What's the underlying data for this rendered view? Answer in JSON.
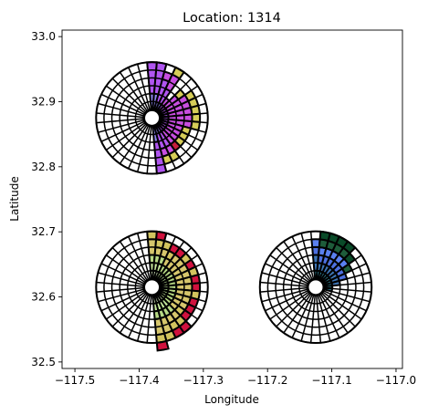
{
  "chart_data": {
    "type": "polar-bar-map",
    "title": "Location: 1314",
    "xlabel": "Longitude",
    "ylabel": "Latitude",
    "xlim": [
      -117.52,
      -116.99
    ],
    "ylim": [
      32.49,
      33.01
    ],
    "xticks": [
      -117.5,
      -117.4,
      -117.3,
      -117.2,
      -117.1,
      -117.0
    ],
    "xtick_labels": [
      "−117.5",
      "−117.4",
      "−117.3",
      "−117.2",
      "−117.1",
      "−117.0"
    ],
    "yticks": [
      32.5,
      32.6,
      32.7,
      32.8,
      32.9,
      33.0
    ],
    "ytick_labels": [
      "32.5",
      "32.6",
      "32.7",
      "32.8",
      "32.9",
      "33.0"
    ],
    "grid": false,
    "roses": [
      {
        "center": [
          -117.38,
          32.875
        ],
        "outer_radius_deg": 0.087,
        "inner_radius_deg": 0.0135,
        "rings": 6,
        "sectors": 36,
        "colors": [
          "#8f86f0",
          "#b055f0",
          "#c84ee0",
          "#d6cd58",
          "#c61f3c",
          "#0a4a28"
        ],
        "bins": [
          [
            2,
            4,
            0,
            0,
            0,
            0
          ],
          [
            2,
            4,
            0,
            0,
            0,
            0
          ],
          [
            1,
            3,
            1,
            0,
            0,
            0
          ],
          [
            1,
            2,
            2,
            1,
            0,
            0
          ],
          [
            0,
            1,
            1,
            0,
            0,
            0
          ],
          [
            0,
            1,
            2,
            1,
            0,
            0
          ],
          [
            0,
            1,
            3,
            1,
            0,
            0
          ],
          [
            0,
            1,
            3,
            1,
            0,
            0
          ],
          [
            0,
            1,
            3,
            1,
            0,
            0
          ],
          [
            0,
            1,
            3,
            1,
            0,
            0
          ],
          [
            0,
            1,
            3,
            1,
            0,
            0
          ],
          [
            0,
            1,
            2,
            1,
            0,
            0
          ],
          [
            0,
            1,
            2,
            1,
            0,
            0
          ],
          [
            0,
            1,
            2,
            1,
            0,
            0
          ],
          [
            0,
            1,
            2,
            0,
            1,
            0
          ],
          [
            1,
            2,
            1,
            1,
            0,
            0
          ],
          [
            1,
            2,
            1,
            1,
            0,
            0
          ],
          [
            2,
            4,
            0,
            0,
            0,
            0
          ]
        ]
      },
      {
        "center": [
          -117.38,
          32.615
        ],
        "outer_radius_deg": 0.087,
        "inner_radius_deg": 0.0135,
        "rings": 6,
        "sectors": 36,
        "colors": [
          "#e2f7c8",
          "#c7ea9e",
          "#b6d884",
          "#d6c66c",
          "#d2c45e",
          "#d0123e"
        ],
        "bins": [
          [
            1,
            1,
            1,
            2,
            1,
            0
          ],
          [
            1,
            1,
            1,
            1,
            1,
            1
          ],
          [
            1,
            1,
            1,
            1,
            1,
            0
          ],
          [
            0,
            1,
            1,
            1,
            1,
            1
          ],
          [
            0,
            1,
            1,
            2,
            0,
            1
          ],
          [
            0,
            1,
            1,
            2,
            1,
            0
          ],
          [
            0,
            1,
            1,
            2,
            0,
            1
          ],
          [
            0,
            1,
            1,
            2,
            1,
            0
          ],
          [
            0,
            1,
            1,
            2,
            0,
            1
          ],
          [
            0,
            1,
            1,
            2,
            0,
            1
          ],
          [
            0,
            1,
            1,
            2,
            1,
            0
          ],
          [
            0,
            1,
            1,
            2,
            0,
            1
          ],
          [
            0,
            1,
            1,
            2,
            0,
            1
          ],
          [
            0,
            1,
            1,
            1,
            1,
            1
          ],
          [
            1,
            1,
            1,
            1,
            1,
            1
          ],
          [
            1,
            1,
            1,
            1,
            1,
            1
          ],
          [
            1,
            1,
            1,
            2,
            1,
            0
          ],
          [
            1,
            1,
            1,
            2,
            1,
            1
          ]
        ]
      },
      {
        "center": [
          -117.125,
          32.615
        ],
        "outer_radius_deg": 0.087,
        "inner_radius_deg": 0.0135,
        "rings": 6,
        "sectors": 36,
        "colors": [
          "#3a9cb0",
          "#3f77b8",
          "#4d70e0",
          "#5a80f0",
          "#1e5c3a",
          "#0a4a28"
        ],
        "bins": [
          [
            1,
            2,
            1,
            1,
            0,
            0
          ],
          [
            1,
            1,
            1,
            1,
            1,
            1
          ],
          [
            1,
            1,
            1,
            1,
            1,
            1
          ],
          [
            1,
            1,
            1,
            1,
            1,
            1
          ],
          [
            1,
            1,
            1,
            1,
            1,
            1
          ],
          [
            1,
            1,
            1,
            1,
            0,
            1
          ],
          [
            1,
            1,
            1,
            0,
            1,
            0
          ],
          [
            1,
            1,
            1,
            0,
            0,
            0
          ],
          [
            1,
            1,
            0,
            0,
            0,
            0
          ],
          [
            1,
            0,
            0,
            0,
            0,
            0
          ],
          [
            1,
            0,
            0,
            0,
            0,
            0
          ],
          [
            0,
            0,
            0,
            0,
            0,
            0
          ],
          [
            0,
            0,
            0,
            0,
            0,
            0
          ],
          [
            0,
            0,
            0,
            0,
            0,
            0
          ],
          [
            0,
            0,
            0,
            0,
            0,
            0
          ],
          [
            0,
            0,
            0,
            0,
            0,
            0
          ],
          [
            0,
            0,
            0,
            0,
            0,
            0
          ],
          [
            0,
            0,
            0,
            0,
            0,
            0
          ]
        ]
      }
    ]
  }
}
